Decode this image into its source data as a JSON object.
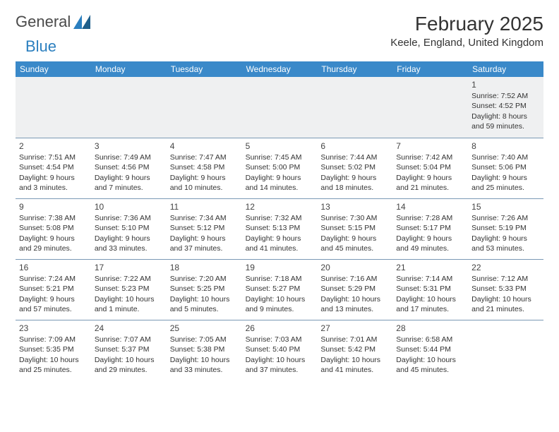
{
  "brand": {
    "part1": "General",
    "part2": "Blue"
  },
  "title": "February 2025",
  "location": "Keele, England, United Kingdom",
  "colors": {
    "header_bg": "#3a89c9",
    "header_text": "#ffffff",
    "cell_border": "#7a99b5",
    "week1_bg": "#eff0f1",
    "text": "#333333",
    "logo_blue": "#2b7fbf"
  },
  "weekdays": [
    "Sunday",
    "Monday",
    "Tuesday",
    "Wednesday",
    "Thursday",
    "Friday",
    "Saturday"
  ],
  "weeks": [
    [
      {
        "day": "",
        "sunrise": "",
        "sunset": "",
        "daylight": ""
      },
      {
        "day": "",
        "sunrise": "",
        "sunset": "",
        "daylight": ""
      },
      {
        "day": "",
        "sunrise": "",
        "sunset": "",
        "daylight": ""
      },
      {
        "day": "",
        "sunrise": "",
        "sunset": "",
        "daylight": ""
      },
      {
        "day": "",
        "sunrise": "",
        "sunset": "",
        "daylight": ""
      },
      {
        "day": "",
        "sunrise": "",
        "sunset": "",
        "daylight": ""
      },
      {
        "day": "1",
        "sunrise": "Sunrise: 7:52 AM",
        "sunset": "Sunset: 4:52 PM",
        "daylight": "Daylight: 8 hours and 59 minutes."
      }
    ],
    [
      {
        "day": "2",
        "sunrise": "Sunrise: 7:51 AM",
        "sunset": "Sunset: 4:54 PM",
        "daylight": "Daylight: 9 hours and 3 minutes."
      },
      {
        "day": "3",
        "sunrise": "Sunrise: 7:49 AM",
        "sunset": "Sunset: 4:56 PM",
        "daylight": "Daylight: 9 hours and 7 minutes."
      },
      {
        "day": "4",
        "sunrise": "Sunrise: 7:47 AM",
        "sunset": "Sunset: 4:58 PM",
        "daylight": "Daylight: 9 hours and 10 minutes."
      },
      {
        "day": "5",
        "sunrise": "Sunrise: 7:45 AM",
        "sunset": "Sunset: 5:00 PM",
        "daylight": "Daylight: 9 hours and 14 minutes."
      },
      {
        "day": "6",
        "sunrise": "Sunrise: 7:44 AM",
        "sunset": "Sunset: 5:02 PM",
        "daylight": "Daylight: 9 hours and 18 minutes."
      },
      {
        "day": "7",
        "sunrise": "Sunrise: 7:42 AM",
        "sunset": "Sunset: 5:04 PM",
        "daylight": "Daylight: 9 hours and 21 minutes."
      },
      {
        "day": "8",
        "sunrise": "Sunrise: 7:40 AM",
        "sunset": "Sunset: 5:06 PM",
        "daylight": "Daylight: 9 hours and 25 minutes."
      }
    ],
    [
      {
        "day": "9",
        "sunrise": "Sunrise: 7:38 AM",
        "sunset": "Sunset: 5:08 PM",
        "daylight": "Daylight: 9 hours and 29 minutes."
      },
      {
        "day": "10",
        "sunrise": "Sunrise: 7:36 AM",
        "sunset": "Sunset: 5:10 PM",
        "daylight": "Daylight: 9 hours and 33 minutes."
      },
      {
        "day": "11",
        "sunrise": "Sunrise: 7:34 AM",
        "sunset": "Sunset: 5:12 PM",
        "daylight": "Daylight: 9 hours and 37 minutes."
      },
      {
        "day": "12",
        "sunrise": "Sunrise: 7:32 AM",
        "sunset": "Sunset: 5:13 PM",
        "daylight": "Daylight: 9 hours and 41 minutes."
      },
      {
        "day": "13",
        "sunrise": "Sunrise: 7:30 AM",
        "sunset": "Sunset: 5:15 PM",
        "daylight": "Daylight: 9 hours and 45 minutes."
      },
      {
        "day": "14",
        "sunrise": "Sunrise: 7:28 AM",
        "sunset": "Sunset: 5:17 PM",
        "daylight": "Daylight: 9 hours and 49 minutes."
      },
      {
        "day": "15",
        "sunrise": "Sunrise: 7:26 AM",
        "sunset": "Sunset: 5:19 PM",
        "daylight": "Daylight: 9 hours and 53 minutes."
      }
    ],
    [
      {
        "day": "16",
        "sunrise": "Sunrise: 7:24 AM",
        "sunset": "Sunset: 5:21 PM",
        "daylight": "Daylight: 9 hours and 57 minutes."
      },
      {
        "day": "17",
        "sunrise": "Sunrise: 7:22 AM",
        "sunset": "Sunset: 5:23 PM",
        "daylight": "Daylight: 10 hours and 1 minute."
      },
      {
        "day": "18",
        "sunrise": "Sunrise: 7:20 AM",
        "sunset": "Sunset: 5:25 PM",
        "daylight": "Daylight: 10 hours and 5 minutes."
      },
      {
        "day": "19",
        "sunrise": "Sunrise: 7:18 AM",
        "sunset": "Sunset: 5:27 PM",
        "daylight": "Daylight: 10 hours and 9 minutes."
      },
      {
        "day": "20",
        "sunrise": "Sunrise: 7:16 AM",
        "sunset": "Sunset: 5:29 PM",
        "daylight": "Daylight: 10 hours and 13 minutes."
      },
      {
        "day": "21",
        "sunrise": "Sunrise: 7:14 AM",
        "sunset": "Sunset: 5:31 PM",
        "daylight": "Daylight: 10 hours and 17 minutes."
      },
      {
        "day": "22",
        "sunrise": "Sunrise: 7:12 AM",
        "sunset": "Sunset: 5:33 PM",
        "daylight": "Daylight: 10 hours and 21 minutes."
      }
    ],
    [
      {
        "day": "23",
        "sunrise": "Sunrise: 7:09 AM",
        "sunset": "Sunset: 5:35 PM",
        "daylight": "Daylight: 10 hours and 25 minutes."
      },
      {
        "day": "24",
        "sunrise": "Sunrise: 7:07 AM",
        "sunset": "Sunset: 5:37 PM",
        "daylight": "Daylight: 10 hours and 29 minutes."
      },
      {
        "day": "25",
        "sunrise": "Sunrise: 7:05 AM",
        "sunset": "Sunset: 5:38 PM",
        "daylight": "Daylight: 10 hours and 33 minutes."
      },
      {
        "day": "26",
        "sunrise": "Sunrise: 7:03 AM",
        "sunset": "Sunset: 5:40 PM",
        "daylight": "Daylight: 10 hours and 37 minutes."
      },
      {
        "day": "27",
        "sunrise": "Sunrise: 7:01 AM",
        "sunset": "Sunset: 5:42 PM",
        "daylight": "Daylight: 10 hours and 41 minutes."
      },
      {
        "day": "28",
        "sunrise": "Sunrise: 6:58 AM",
        "sunset": "Sunset: 5:44 PM",
        "daylight": "Daylight: 10 hours and 45 minutes."
      },
      {
        "day": "",
        "sunrise": "",
        "sunset": "",
        "daylight": ""
      }
    ]
  ]
}
